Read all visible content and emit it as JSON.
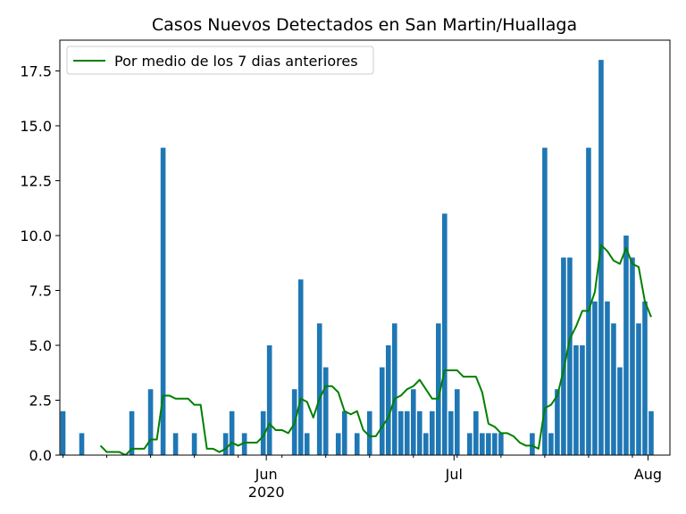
{
  "chart_data": {
    "type": "bar",
    "title": "Casos Nuevos Detectados en San Martin/Huallaga",
    "xlabel": "",
    "ylabel": "",
    "ylim": [
      0,
      18.9
    ],
    "y_ticks": [
      "0.0",
      "2.5",
      "5.0",
      "7.5",
      "10.0",
      "12.5",
      "15.0",
      "17.5"
    ],
    "x_range": [
      "2020-04-29",
      "2020-08-04"
    ],
    "x_ticks": [
      {
        "date": "2020-06-01",
        "label": "Jun",
        "sublabel": "2020"
      },
      {
        "date": "2020-07-01",
        "label": "Jul",
        "sublabel": ""
      },
      {
        "date": "2020-08-01",
        "label": "Aug",
        "sublabel": ""
      }
    ],
    "minor_ticks_days": 7,
    "legend": {
      "position": "top-left",
      "label": "Por medio de los 7 dias anteriores"
    },
    "grid": false,
    "series": [
      {
        "kind": "bar",
        "color": "#1f77b4",
        "points": [
          [
            "2020-04-29",
            2
          ],
          [
            "2020-05-02",
            1
          ],
          [
            "2020-05-10",
            2
          ],
          [
            "2020-05-13",
            3
          ],
          [
            "2020-05-15",
            14
          ],
          [
            "2020-05-17",
            1
          ],
          [
            "2020-05-20",
            1
          ],
          [
            "2020-05-25",
            1
          ],
          [
            "2020-05-26",
            2
          ],
          [
            "2020-05-28",
            1
          ],
          [
            "2020-05-31",
            2
          ],
          [
            "2020-06-01",
            5
          ],
          [
            "2020-06-05",
            3
          ],
          [
            "2020-06-06",
            8
          ],
          [
            "2020-06-07",
            1
          ],
          [
            "2020-06-09",
            6
          ],
          [
            "2020-06-10",
            4
          ],
          [
            "2020-06-12",
            1
          ],
          [
            "2020-06-13",
            2
          ],
          [
            "2020-06-15",
            1
          ],
          [
            "2020-06-17",
            2
          ],
          [
            "2020-06-19",
            4
          ],
          [
            "2020-06-20",
            5
          ],
          [
            "2020-06-21",
            6
          ],
          [
            "2020-06-22",
            2
          ],
          [
            "2020-06-23",
            2
          ],
          [
            "2020-06-24",
            3
          ],
          [
            "2020-06-25",
            2
          ],
          [
            "2020-06-26",
            1
          ],
          [
            "2020-06-27",
            2
          ],
          [
            "2020-06-28",
            6
          ],
          [
            "2020-06-29",
            11
          ],
          [
            "2020-06-30",
            2
          ],
          [
            "2020-07-01",
            3
          ],
          [
            "2020-07-03",
            1
          ],
          [
            "2020-07-04",
            2
          ],
          [
            "2020-07-05",
            1
          ],
          [
            "2020-07-06",
            1
          ],
          [
            "2020-07-07",
            1
          ],
          [
            "2020-07-08",
            1
          ],
          [
            "2020-07-13",
            1
          ],
          [
            "2020-07-15",
            14
          ],
          [
            "2020-07-16",
            1
          ],
          [
            "2020-07-17",
            3
          ],
          [
            "2020-07-18",
            9
          ],
          [
            "2020-07-19",
            9
          ],
          [
            "2020-07-20",
            5
          ],
          [
            "2020-07-21",
            5
          ],
          [
            "2020-07-22",
            14
          ],
          [
            "2020-07-23",
            7
          ],
          [
            "2020-07-24",
            18
          ],
          [
            "2020-07-25",
            7
          ],
          [
            "2020-07-26",
            6
          ],
          [
            "2020-07-27",
            4
          ],
          [
            "2020-07-28",
            10
          ],
          [
            "2020-07-29",
            9
          ],
          [
            "2020-07-30",
            6
          ],
          [
            "2020-07-31",
            7
          ],
          [
            "2020-08-01",
            2
          ]
        ]
      },
      {
        "kind": "line",
        "name": "Por medio de los 7 dias anteriores",
        "color": "#008000",
        "points": [
          [
            "2020-05-05",
            0.43
          ],
          [
            "2020-05-06",
            0.14
          ],
          [
            "2020-05-07",
            0.14
          ],
          [
            "2020-05-08",
            0.14
          ],
          [
            "2020-05-09",
            0.0
          ],
          [
            "2020-05-10",
            0.29
          ],
          [
            "2020-05-11",
            0.29
          ],
          [
            "2020-05-12",
            0.29
          ],
          [
            "2020-05-13",
            0.71
          ],
          [
            "2020-05-14",
            0.71
          ],
          [
            "2020-05-15",
            2.71
          ],
          [
            "2020-05-16",
            2.71
          ],
          [
            "2020-05-17",
            2.57
          ],
          [
            "2020-05-18",
            2.57
          ],
          [
            "2020-05-19",
            2.57
          ],
          [
            "2020-05-20",
            2.29
          ],
          [
            "2020-05-21",
            2.29
          ],
          [
            "2020-05-22",
            0.29
          ],
          [
            "2020-05-23",
            0.29
          ],
          [
            "2020-05-24",
            0.14
          ],
          [
            "2020-05-25",
            0.29
          ],
          [
            "2020-05-26",
            0.57
          ],
          [
            "2020-05-27",
            0.43
          ],
          [
            "2020-05-28",
            0.57
          ],
          [
            "2020-05-29",
            0.57
          ],
          [
            "2020-05-30",
            0.57
          ],
          [
            "2020-05-31",
            0.86
          ],
          [
            "2020-06-01",
            1.43
          ],
          [
            "2020-06-02",
            1.14
          ],
          [
            "2020-06-03",
            1.14
          ],
          [
            "2020-06-04",
            1.0
          ],
          [
            "2020-06-05",
            1.43
          ],
          [
            "2020-06-06",
            2.57
          ],
          [
            "2020-06-07",
            2.43
          ],
          [
            "2020-06-08",
            1.71
          ],
          [
            "2020-06-09",
            2.57
          ],
          [
            "2020-06-10",
            3.14
          ],
          [
            "2020-06-11",
            3.14
          ],
          [
            "2020-06-12",
            2.86
          ],
          [
            "2020-06-13",
            2.0
          ],
          [
            "2020-06-14",
            1.86
          ],
          [
            "2020-06-15",
            2.0
          ],
          [
            "2020-06-16",
            1.14
          ],
          [
            "2020-06-17",
            0.86
          ],
          [
            "2020-06-18",
            0.86
          ],
          [
            "2020-06-19",
            1.29
          ],
          [
            "2020-06-20",
            1.71
          ],
          [
            "2020-06-21",
            2.57
          ],
          [
            "2020-06-22",
            2.71
          ],
          [
            "2020-06-23",
            3.0
          ],
          [
            "2020-06-24",
            3.14
          ],
          [
            "2020-06-25",
            3.43
          ],
          [
            "2020-06-26",
            3.0
          ],
          [
            "2020-06-27",
            2.57
          ],
          [
            "2020-06-28",
            2.57
          ],
          [
            "2020-06-29",
            3.86
          ],
          [
            "2020-06-30",
            3.86
          ],
          [
            "2020-07-01",
            3.86
          ],
          [
            "2020-07-02",
            3.57
          ],
          [
            "2020-07-03",
            3.57
          ],
          [
            "2020-07-04",
            3.57
          ],
          [
            "2020-07-05",
            2.86
          ],
          [
            "2020-07-06",
            1.43
          ],
          [
            "2020-07-07",
            1.29
          ],
          [
            "2020-07-08",
            1.0
          ],
          [
            "2020-07-09",
            1.0
          ],
          [
            "2020-07-10",
            0.86
          ],
          [
            "2020-07-11",
            0.57
          ],
          [
            "2020-07-12",
            0.43
          ],
          [
            "2020-07-13",
            0.43
          ],
          [
            "2020-07-14",
            0.29
          ],
          [
            "2020-07-15",
            2.14
          ],
          [
            "2020-07-16",
            2.29
          ],
          [
            "2020-07-17",
            2.71
          ],
          [
            "2020-07-18",
            3.86
          ],
          [
            "2020-07-19",
            5.29
          ],
          [
            "2020-07-20",
            5.86
          ],
          [
            "2020-07-21",
            6.57
          ],
          [
            "2020-07-22",
            6.57
          ],
          [
            "2020-07-23",
            7.43
          ],
          [
            "2020-07-24",
            9.57
          ],
          [
            "2020-07-25",
            9.29
          ],
          [
            "2020-07-26",
            8.86
          ],
          [
            "2020-07-27",
            8.71
          ],
          [
            "2020-07-28",
            9.43
          ],
          [
            "2020-07-29",
            8.71
          ],
          [
            "2020-07-30",
            8.57
          ],
          [
            "2020-07-31",
            7.0
          ],
          [
            "2020-08-01",
            6.29
          ]
        ]
      }
    ]
  }
}
